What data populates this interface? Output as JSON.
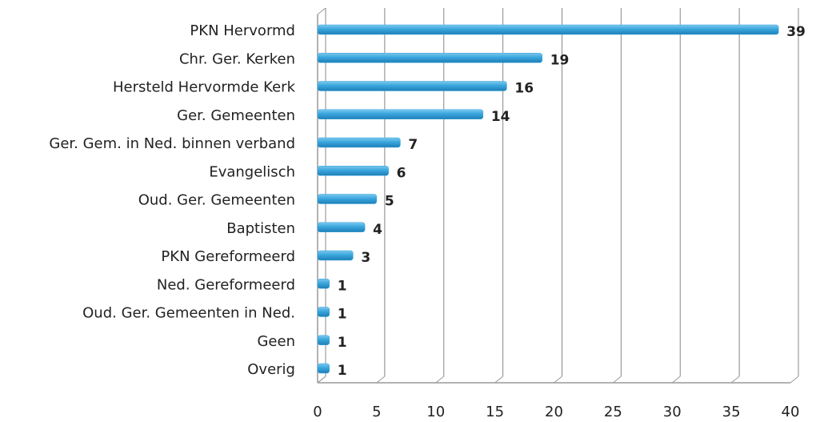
{
  "chart_data": {
    "type": "bar",
    "orientation": "horizontal",
    "categories": [
      "PKN Hervormd",
      "Chr. Ger. Kerken",
      "Hersteld Hervormde Kerk",
      "Ger. Gemeenten",
      "Ger. Gem. in Ned. binnen verband",
      "Evangelisch",
      "Oud. Ger. Gemeenten",
      "Baptisten",
      "PKN Gereformeerd",
      "Ned. Gereformeerd",
      "Oud. Ger. Gemeenten in Ned.",
      "Geen",
      "Overig"
    ],
    "values": [
      39,
      19,
      16,
      14,
      7,
      6,
      5,
      4,
      3,
      1,
      1,
      1,
      1
    ],
    "color": "#3aa6dd",
    "xlim": [
      0,
      40
    ],
    "xticks": [
      0,
      5,
      10,
      15,
      20,
      25,
      30,
      35,
      40
    ],
    "grid": true
  }
}
